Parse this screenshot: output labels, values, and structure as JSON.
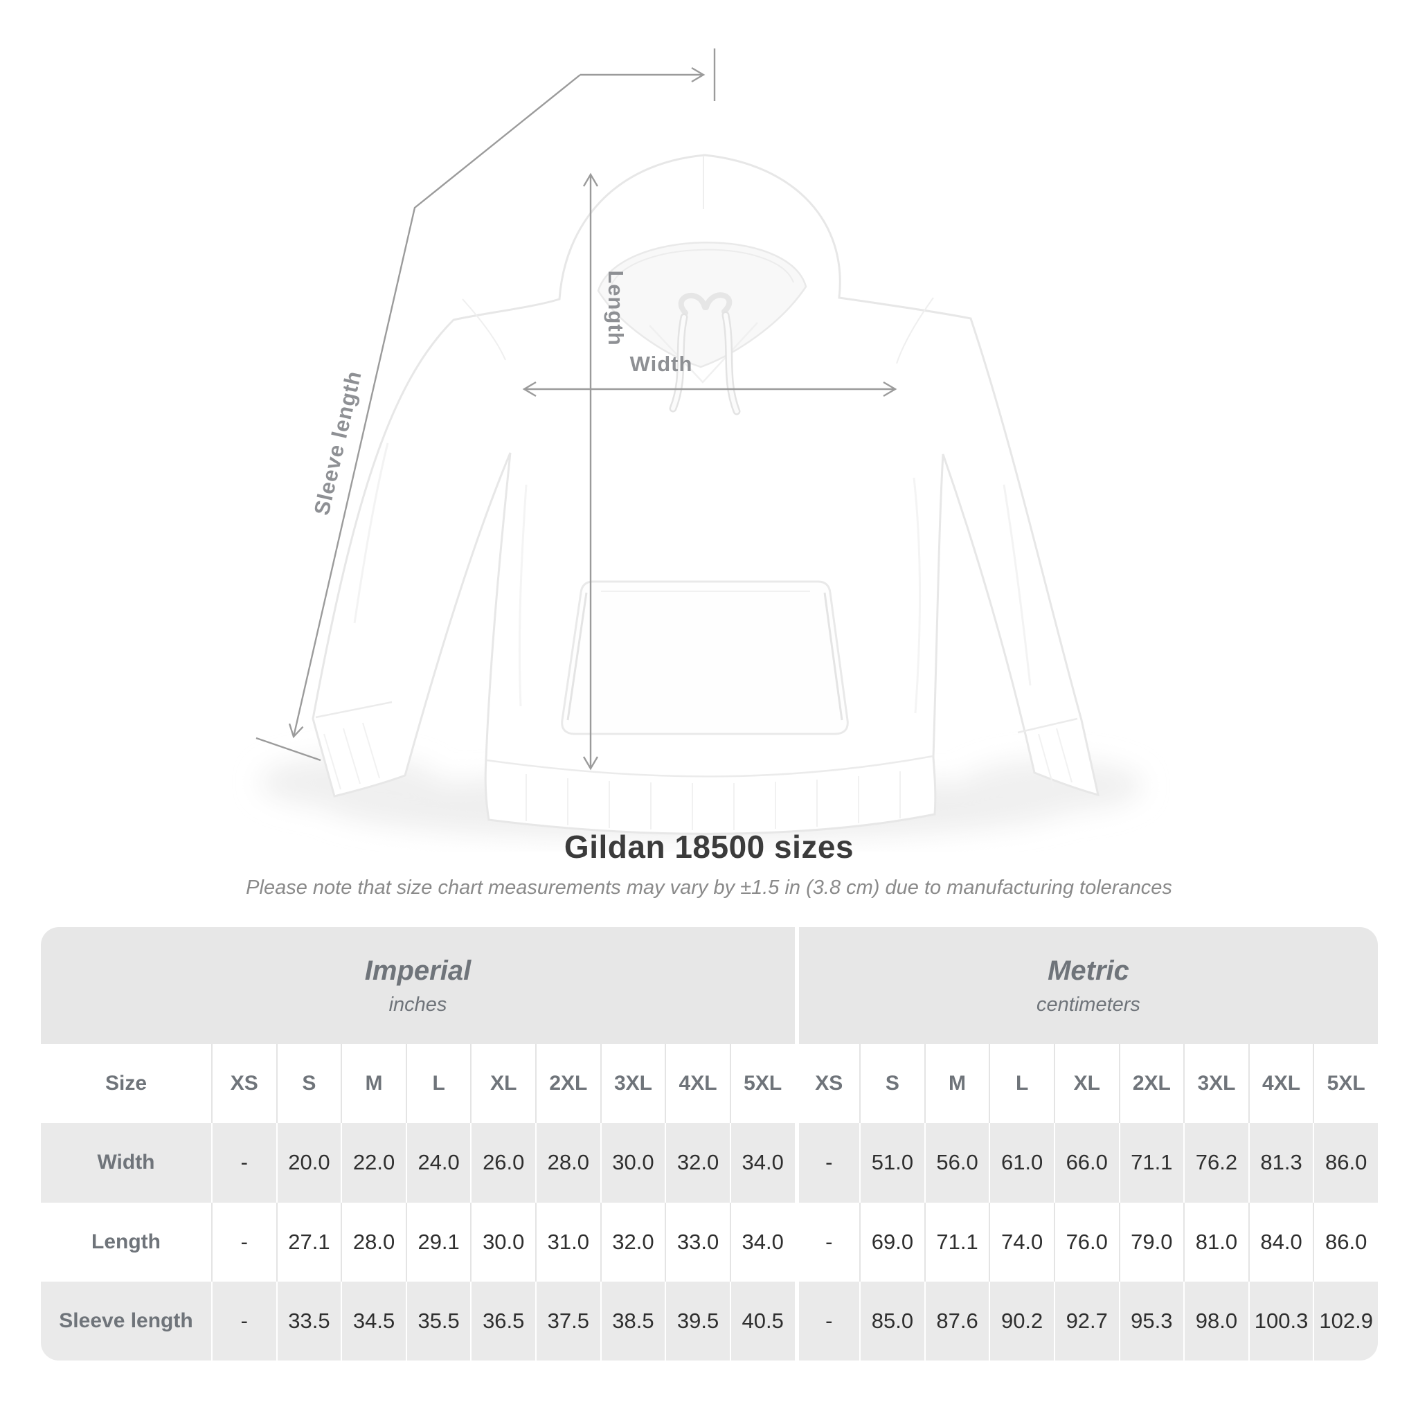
{
  "header": {
    "title": "Gildan 18500 sizes",
    "subtitle": "Please note that size chart measurements may vary by ±1.5 in (3.8 cm) due to manufacturing tolerances"
  },
  "diagram": {
    "labels": {
      "length": "Length",
      "width": "Width",
      "sleeve_length": "Sleeve length"
    },
    "line_color": "#9b9b9b",
    "label_color": "#8e9094"
  },
  "chart_data": {
    "type": "table",
    "title": "Gildan 18500 sizes",
    "note": "Please note that size chart measurements may vary by ±1.5 in (3.8 cm) due to manufacturing tolerances",
    "size_column_header": "Size",
    "column_groups": [
      {
        "label": "Imperial",
        "unit": "inches"
      },
      {
        "label": "Metric",
        "unit": "centimeters"
      }
    ],
    "sizes": [
      "XS",
      "S",
      "M",
      "L",
      "XL",
      "2XL",
      "3XL",
      "4XL",
      "5XL"
    ],
    "rows": [
      {
        "label": "Width",
        "imperial": [
          "-",
          "20.0",
          "22.0",
          "24.0",
          "26.0",
          "28.0",
          "30.0",
          "32.0",
          "34.0"
        ],
        "metric": [
          "-",
          "51.0",
          "56.0",
          "61.0",
          "66.0",
          "71.1",
          "76.2",
          "81.3",
          "86.0"
        ]
      },
      {
        "label": "Length",
        "imperial": [
          "-",
          "27.1",
          "28.0",
          "29.1",
          "30.0",
          "31.0",
          "32.0",
          "33.0",
          "34.0"
        ],
        "metric": [
          "-",
          "69.0",
          "71.1",
          "74.0",
          "76.0",
          "79.0",
          "81.0",
          "84.0",
          "86.0"
        ]
      },
      {
        "label": "Sleeve length",
        "imperial": [
          "-",
          "33.5",
          "34.5",
          "35.5",
          "36.5",
          "37.5",
          "38.5",
          "39.5",
          "40.5"
        ],
        "metric": [
          "-",
          "85.0",
          "87.6",
          "90.2",
          "92.7",
          "95.3",
          "98.0",
          "100.3",
          "102.9"
        ]
      }
    ]
  }
}
